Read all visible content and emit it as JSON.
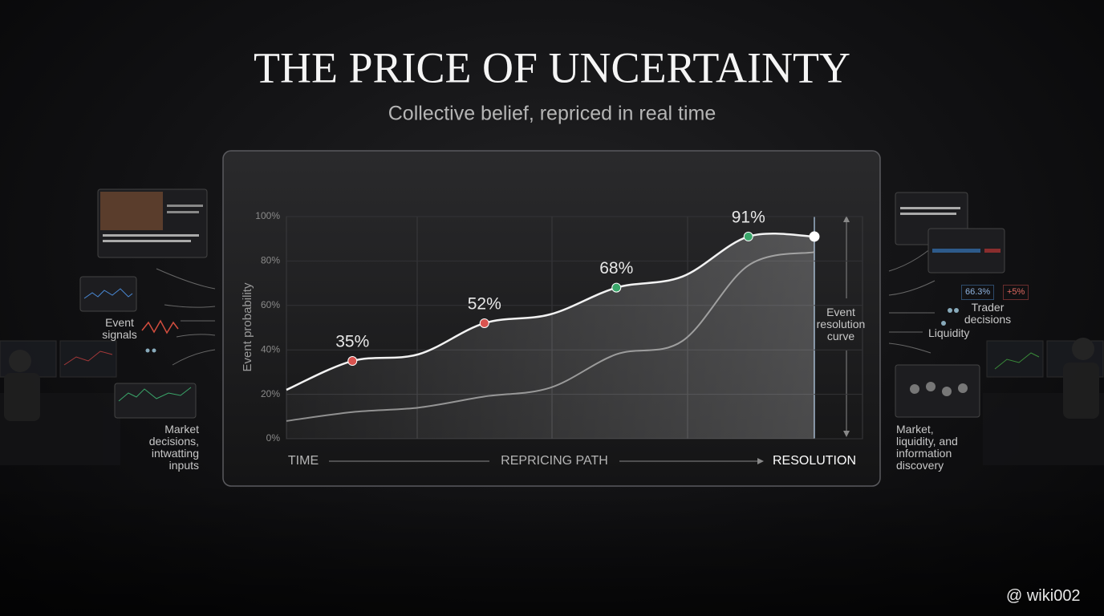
{
  "chart_data": {
    "type": "line",
    "title": "THE PRICE OF UNCERTAINTY",
    "subtitle": "Collective belief, repriced in real time",
    "y_label": "Event probability",
    "x_axis_labels": [
      "TIME",
      "REPRICING PATH",
      "RESOLUTION"
    ],
    "annotation": "Event resolution curve",
    "categories": [
      null,
      null,
      null,
      null,
      null,
      null,
      null,
      null,
      null
    ],
    "series": [
      {
        "color": "#f2f2f2",
        "values": [
          22,
          35,
          38,
          52,
          56,
          68,
          73,
          91,
          91
        ],
        "value_labels": [
          null,
          "35%",
          null,
          "52%",
          null,
          "68%",
          null,
          "91%",
          null
        ],
        "point_colors": [
          null,
          "#d9534f",
          null,
          "#d9534f",
          null,
          "#3aa66a",
          null,
          "#3aa66a",
          "#ffffff"
        ]
      },
      {
        "color": "#8a8a8a",
        "values": [
          8,
          12,
          14,
          19,
          23,
          38,
          44,
          78,
          84
        ]
      }
    ],
    "ylim": [
      0,
      100
    ],
    "yticks": [
      {
        "value": 0,
        "label": "0%"
      },
      {
        "value": 20,
        "label": "20%"
      },
      {
        "value": 40,
        "label": "40%"
      },
      {
        "value": 60,
        "label": "60%"
      },
      {
        "value": 80,
        "label": "80%"
      },
      {
        "value": 100,
        "label": "100%"
      }
    ],
    "grid": true
  },
  "side_labels": {
    "left": [
      "Event signals",
      "Market decisions, intwatting inputs"
    ],
    "right": [
      "Trader decisions",
      "Liquidity",
      "Market, liquidity, and information discovery"
    ],
    "tickers": [
      "66.3%",
      "+5%"
    ]
  },
  "watermark": "@ wiki002"
}
